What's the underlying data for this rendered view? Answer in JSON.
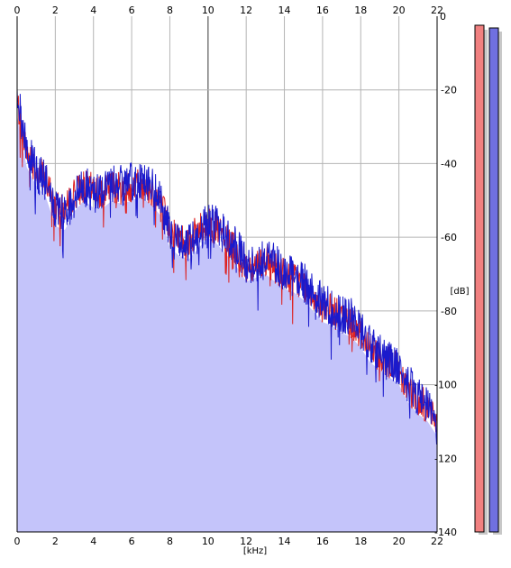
{
  "chart_data": {
    "type": "area",
    "xlabel": "[kHz]",
    "ylabel": "[dB]",
    "xlim": [
      0,
      22
    ],
    "ylim": [
      -140,
      0
    ],
    "x_ticks": [
      0,
      2,
      4,
      6,
      8,
      10,
      12,
      14,
      16,
      18,
      20,
      22
    ],
    "y_ticks": [
      -20,
      -40,
      -60,
      -80,
      -100,
      -120,
      -140
    ],
    "y_tick_labels": [
      "-20",
      "-40",
      "-60",
      "-80",
      "-100",
      "-120",
      "-140"
    ],
    "top_y_label": "0",
    "grid": true,
    "series": [
      {
        "channel": "left",
        "color": "#dd2222",
        "x": [
          0,
          0.5,
          1,
          1.5,
          2,
          2.5,
          3,
          3.5,
          4,
          4.5,
          5,
          5.5,
          6,
          6.5,
          7,
          7.5,
          8,
          8.5,
          9,
          9.5,
          10,
          10.5,
          11,
          11.5,
          12,
          12.5,
          13,
          13.5,
          14,
          14.5,
          15,
          15.5,
          16,
          16.5,
          17,
          17.5,
          18,
          18.5,
          19,
          19.5,
          20,
          20.5,
          21,
          21.5,
          22
        ],
        "values": [
          -23,
          -37,
          -41,
          -44,
          -52,
          -53,
          -48,
          -46,
          -47,
          -48,
          -46,
          -47,
          -46,
          -45,
          -47,
          -50,
          -58,
          -60,
          -61,
          -58,
          -56,
          -58,
          -61,
          -64,
          -68,
          -67,
          -66,
          -68,
          -70,
          -71,
          -73,
          -76,
          -79,
          -80,
          -82,
          -83,
          -86,
          -90,
          -92,
          -94,
          -96,
          -101,
          -104,
          -106,
          -110
        ]
      },
      {
        "channel": "right",
        "color": "#1a1acc",
        "x": [
          0,
          0.5,
          1,
          1.5,
          2,
          2.5,
          3,
          3.5,
          4,
          4.5,
          5,
          5.5,
          6,
          6.5,
          7,
          7.5,
          8,
          8.5,
          9,
          9.5,
          10,
          10.5,
          11,
          11.5,
          12,
          12.5,
          13,
          13.5,
          14,
          14.5,
          15,
          15.5,
          16,
          16.5,
          17,
          17.5,
          18,
          18.5,
          19,
          19.5,
          20,
          20.5,
          21,
          21.5,
          22
        ],
        "values": [
          -22,
          -36,
          -42,
          -45,
          -53,
          -54,
          -49,
          -46,
          -48,
          -47,
          -45,
          -46,
          -45,
          -44,
          -46,
          -50,
          -59,
          -61,
          -62,
          -59,
          -55,
          -57,
          -60,
          -63,
          -67,
          -67,
          -65,
          -67,
          -69,
          -71,
          -72,
          -75,
          -78,
          -79,
          -81,
          -82,
          -85,
          -89,
          -91,
          -93,
          -95,
          -100,
          -103,
          -105,
          -109
        ]
      }
    ],
    "colors": {
      "area_fill": "#c4c4fa",
      "grid": "#b4b4b4",
      "grid_major": "#7a7a7a",
      "left_level_bar": "#f08080",
      "right_level_bar": "#7070e0",
      "level_bar_shadow": "#c8c8c8"
    }
  }
}
